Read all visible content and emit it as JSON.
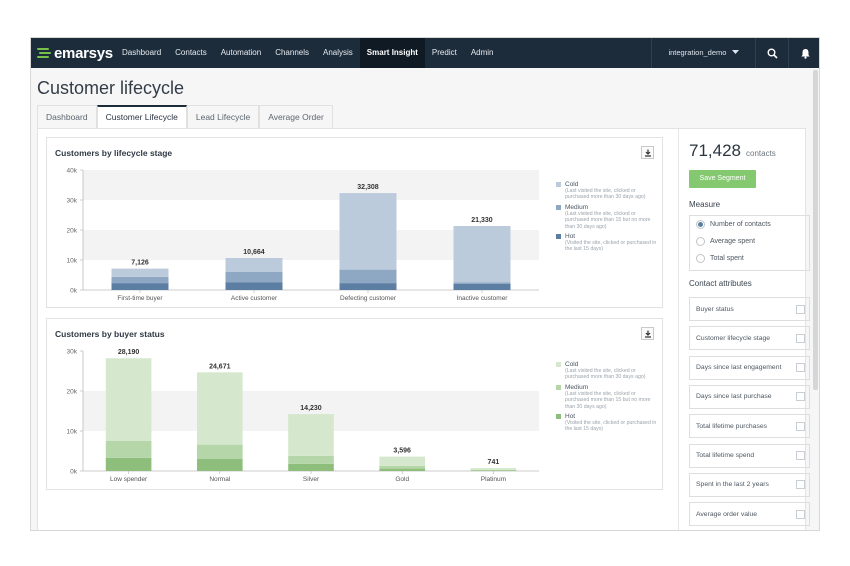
{
  "app": {
    "logo_text": "emarsys",
    "nav": [
      "Dashboard",
      "Contacts",
      "Automation",
      "Channels",
      "Analysis",
      "Smart Insight",
      "Predict",
      "Admin"
    ],
    "active_nav": "Smart Insight",
    "account": "integration_demo",
    "icons": [
      "search-icon",
      "bell-icon",
      "chevron-down-icon"
    ]
  },
  "page": {
    "title": "Customer lifecycle",
    "tabs": [
      "Dashboard",
      "Customer Lifecycle",
      "Lead Lifecycle",
      "Average Order"
    ],
    "active_tab": "Customer Lifecycle"
  },
  "sidebar": {
    "count": "71,428",
    "count_label": "contacts",
    "save_button": "Save Segment",
    "measure_label": "Measure",
    "measures": [
      "Number of contacts",
      "Average spent",
      "Total spent"
    ],
    "selected_measure": "Number of contacts",
    "attributes_label": "Contact attributes",
    "attributes": [
      "Buyer status",
      "Customer lifecycle stage",
      "Days since last engagement",
      "Days since last purchase",
      "Total lifetime purchases",
      "Total lifetime spend",
      "Spent in the last 2 years",
      "Average order value"
    ]
  },
  "chart_data": [
    {
      "type": "bar",
      "title": "Customers by lifecycle stage",
      "categories": [
        "First-time buyer",
        "Active customer",
        "Defecting customer",
        "Inactive customer"
      ],
      "totals": [
        7126,
        10664,
        32308,
        21330
      ],
      "total_labels": [
        "7,126",
        "10,664",
        "32,308",
        "21,330"
      ],
      "yticks": [
        "0k",
        "10k",
        "20k",
        "30k",
        "40k"
      ],
      "ylim": [
        0,
        40000
      ],
      "stacked": true,
      "series": [
        {
          "name": "Hot",
          "desc": "(Visited the site, clicked or purchased in the last 15 days)",
          "color": "#5d7ea3",
          "values": [
            2300,
            2500,
            2300,
            2100
          ]
        },
        {
          "name": "Medium",
          "desc": "(Last visited the site, clicked or purchased more than 15 but no more than 30 days ago)",
          "color": "#8ea7c2",
          "values": [
            2100,
            3500,
            4500,
            500
          ]
        },
        {
          "name": "Cold",
          "desc": "(Last visited the site, clicked or purchased more than 30 days ago)",
          "color": "#bccbdb",
          "values": [
            2726,
            4664,
            25508,
            18730
          ]
        }
      ],
      "legend": "right"
    },
    {
      "type": "bar",
      "title": "Customers by buyer status",
      "categories": [
        "Low spender",
        "Normal",
        "Silver",
        "Gold",
        "Platinum"
      ],
      "totals": [
        28190,
        24671,
        14230,
        3596,
        741
      ],
      "total_labels": [
        "28,190",
        "24,671",
        "14,230",
        "3,596",
        "741"
      ],
      "yticks": [
        "0k",
        "10k",
        "20k",
        "30k"
      ],
      "ylim": [
        0,
        30000
      ],
      "stacked": true,
      "series": [
        {
          "name": "Hot",
          "desc": "(Visited the site, clicked or purchased in the last 15 days)",
          "color": "#8dbe7b",
          "values": [
            3300,
            3000,
            1800,
            600,
            150
          ]
        },
        {
          "name": "Medium",
          "desc": "(Last visited the site, clicked or purchased more than 15 but no more than 30 days ago)",
          "color": "#b5d6a8",
          "values": [
            4200,
            3600,
            2000,
            700,
            150
          ]
        },
        {
          "name": "Cold",
          "desc": "(Last visited the site, clicked or purchased more than 30 days ago)",
          "color": "#d5e8cd",
          "values": [
            20690,
            18071,
            10430,
            2296,
            441
          ]
        }
      ],
      "legend": "right"
    }
  ]
}
